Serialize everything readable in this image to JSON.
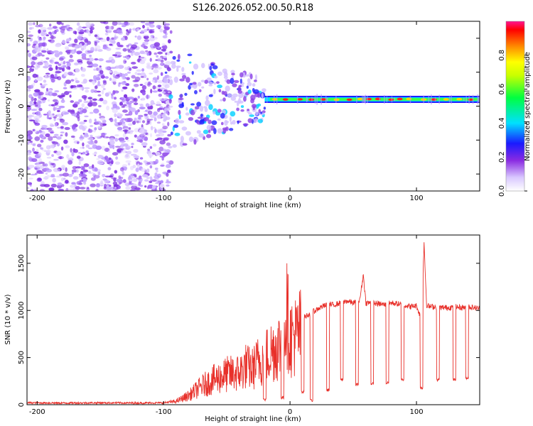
{
  "figure_title": "S126.2026.052.00.50.R18",
  "chart_data": [
    {
      "type": "heatmap",
      "title": "S126.2026.052.00.50.R18",
      "xlabel": "Height of straight line (km)",
      "ylabel": "Frequency (Hz)",
      "xlim": [
        -208,
        150
      ],
      "ylim": [
        -25,
        25
      ],
      "x_ticks": [
        -200,
        -100,
        0,
        100
      ],
      "y_ticks": [
        -20,
        -10,
        0,
        10,
        20
      ],
      "colorbar": {
        "label": "Normalized spectral amplitude",
        "range": [
          0,
          1
        ],
        "ticks": [
          "0.0",
          "0.2",
          "0.4",
          "0.6",
          "0.8"
        ],
        "tick_values": [
          0.0,
          0.2,
          0.4,
          0.6,
          0.8
        ]
      },
      "description_values": {
        "noise_region_km": [
          -208,
          -100
        ],
        "tone_frequency_hz": 2,
        "tone_start_km": -20
      }
    },
    {
      "type": "line",
      "xlabel": "Height of straight line (km)",
      "ylabel": "SNR (10 * v/v)",
      "xlim": [
        -208,
        150
      ],
      "ylim": [
        0,
        1800
      ],
      "x_ticks": [
        -200,
        -100,
        0,
        100
      ],
      "y_ticks": [
        0,
        500,
        1000,
        1500
      ],
      "series": [
        {
          "name": "SNR",
          "color": "#e8302a",
          "x": [
            -208,
            -180,
            -150,
            -120,
            -100,
            -90,
            -80,
            -70,
            -60,
            -50,
            -40,
            -35,
            -30,
            -25,
            -20,
            -15,
            -10,
            -5,
            -3,
            0,
            5,
            10,
            15,
            20,
            25,
            30,
            35,
            40,
            45,
            50,
            55,
            58,
            60,
            65,
            70,
            75,
            80,
            85,
            90,
            95,
            100,
            104,
            106,
            108,
            110,
            115,
            120,
            125,
            130,
            135,
            140,
            145,
            150
          ],
          "values": [
            20,
            18,
            20,
            18,
            20,
            40,
            110,
            220,
            300,
            360,
            380,
            460,
            420,
            520,
            560,
            640,
            690,
            760,
            1150,
            800,
            820,
            920,
            960,
            1000,
            1040,
            1060,
            1060,
            1080,
            1100,
            1080,
            1100,
            1380,
            1080,
            1080,
            1070,
            1060,
            1080,
            1070,
            1060,
            1040,
            1050,
            900,
            1720,
            1060,
            1040,
            1040,
            1030,
            1030,
            1040,
            1030,
            1040,
            1030,
            1020
          ]
        }
      ],
      "dropouts_x": [
        -20,
        -6,
        10,
        17,
        30,
        41,
        53,
        65,
        77,
        89,
        104,
        117,
        130,
        140
      ],
      "dropout_values": [
        40,
        60,
        120,
        30,
        140,
        250,
        200,
        210,
        220,
        250,
        160,
        250,
        250,
        270
      ]
    }
  ]
}
